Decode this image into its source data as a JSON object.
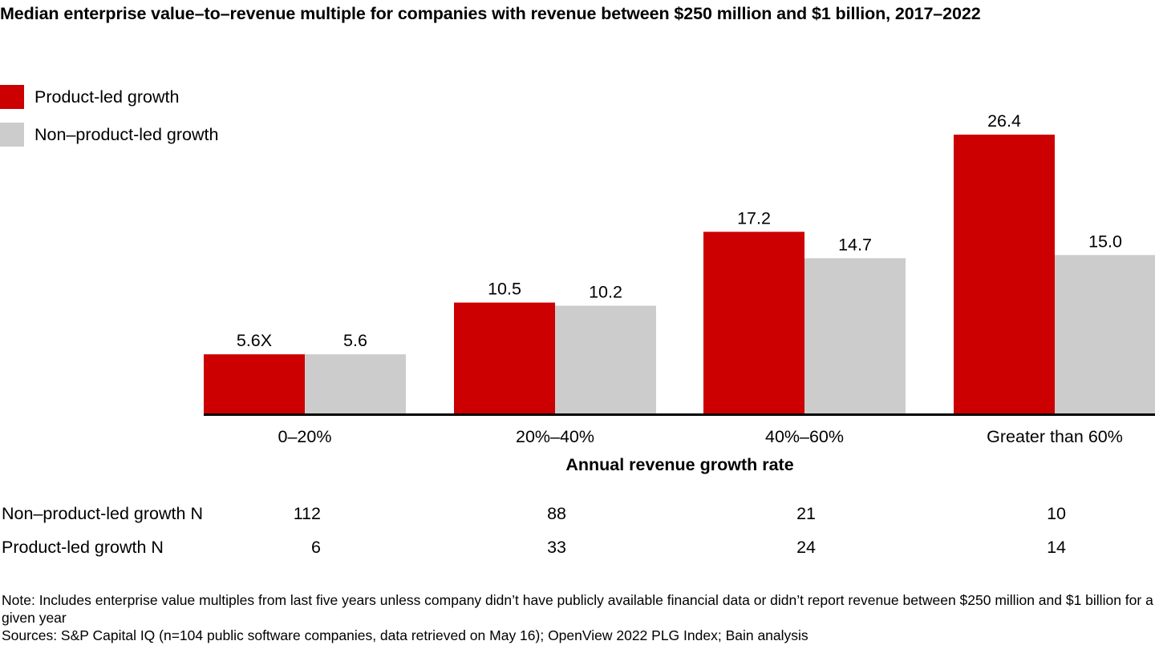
{
  "chart_data": {
    "type": "bar",
    "title": "Median enterprise value–to–revenue multiple for companies with revenue between $250 million and $1 billion, 2017–2022",
    "xlabel": "Annual revenue growth rate",
    "ylabel": "",
    "categories": [
      "0–20%",
      "20%–40%",
      "40%–60%",
      "Greater than 60%"
    ],
    "series": [
      {
        "name": "Product-led growth",
        "color": "#cc0000",
        "values": [
          5.6,
          10.5,
          17.2,
          26.4
        ],
        "labels": [
          "5.6X",
          "10.5",
          "17.2",
          "26.4"
        ]
      },
      {
        "name": "Non–product-led growth",
        "color": "#cccccc",
        "values": [
          5.6,
          10.2,
          14.7,
          15.0
        ],
        "labels": [
          "5.6",
          "10.2",
          "14.7",
          "15.0"
        ]
      }
    ],
    "ylim": [
      0,
      30
    ],
    "grid": false,
    "legend_position": "top-left",
    "sample_sizes": [
      {
        "label": "Non–product-led growth N",
        "values": [
          "112",
          "88",
          "21",
          "10"
        ]
      },
      {
        "label": "Product-led growth N",
        "values": [
          "6",
          "33",
          "24",
          "14"
        ]
      }
    ]
  },
  "notes": {
    "note": "Note: Includes enterprise value multiples from last five years unless company didn’t have publicly available financial data or didn’t report revenue between $250 million and $1 billion for a given year",
    "sources": "Sources: S&P Capital IQ (n=104 public software companies, data retrieved on May 16); OpenView 2022 PLG Index; Bain analysis"
  }
}
